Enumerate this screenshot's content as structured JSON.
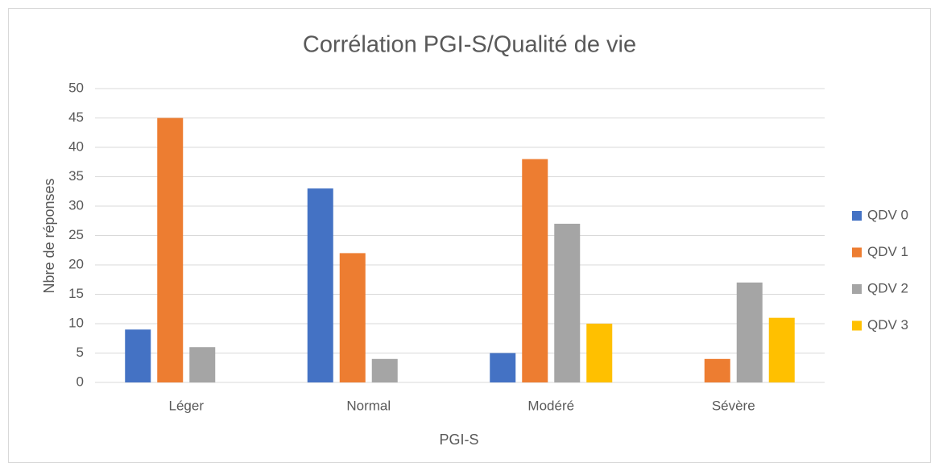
{
  "chart_data": {
    "type": "bar",
    "title": "Corrélation PGI-S/Qualité de vie",
    "x_label": "PGI-S",
    "y_label": "Nbre de réponses",
    "categories": [
      "Léger",
      "Normal",
      "Modéré",
      "Sévère"
    ],
    "series": [
      {
        "name": "QDV 0",
        "color": "#4472c4",
        "values": [
          9,
          33,
          5,
          0
        ]
      },
      {
        "name": "QDV 1",
        "color": "#ed7d31",
        "values": [
          45,
          22,
          38,
          4
        ]
      },
      {
        "name": "QDV 2",
        "color": "#a5a5a5",
        "values": [
          6,
          4,
          27,
          17
        ]
      },
      {
        "name": "QDV 3",
        "color": "#ffc000",
        "values": [
          0,
          0,
          10,
          11
        ]
      }
    ],
    "ylim": [
      0,
      50
    ],
    "yticks": [
      0,
      5,
      10,
      15,
      20,
      25,
      30,
      35,
      40,
      45,
      50
    ],
    "grid": true,
    "legend": "right"
  }
}
